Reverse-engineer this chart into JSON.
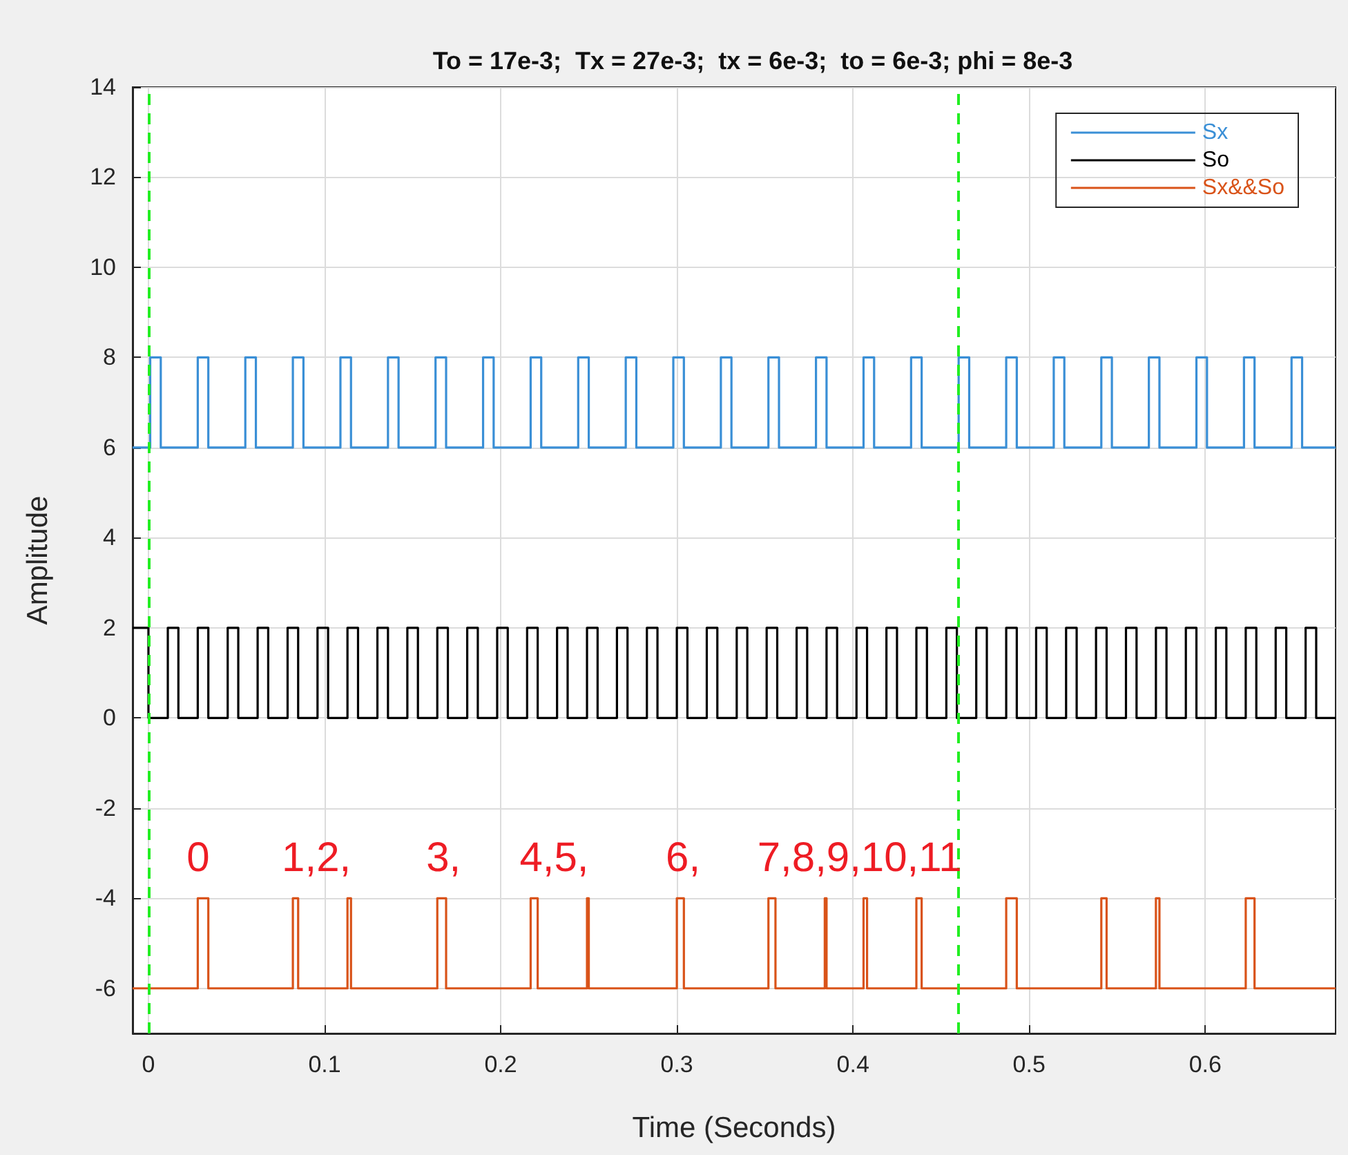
{
  "chart_data": {
    "type": "step",
    "title": "To = 17e-3;  Tx = 27e-3;  tx = 6e-3;  to = 6e-3; phi = 8e-3",
    "xlabel": "Time (Seconds)",
    "ylabel": "Amplitude",
    "xlim": [
      -0.009,
      0.674
    ],
    "xticks": [
      0,
      0.1,
      0.2,
      0.3,
      0.4,
      0.5,
      0.6
    ],
    "ylim": [
      -7,
      14
    ],
    "yticks": [
      -6,
      -4,
      -2,
      0,
      2,
      4,
      6,
      8,
      10,
      12,
      14
    ],
    "grid": true,
    "legend": "top right",
    "series": [
      {
        "name": "Sx",
        "color": "#3a8fd6",
        "x": [
          -0.009,
          0.001,
          0.007,
          0.028,
          0.034,
          0.055,
          0.061,
          0.082,
          0.088,
          0.109,
          0.115,
          0.136,
          0.142,
          0.163,
          0.169,
          0.19,
          0.196,
          0.217,
          0.223,
          0.244,
          0.25,
          0.271,
          0.277,
          0.298,
          0.304,
          0.325,
          0.331,
          0.352,
          0.358,
          0.379,
          0.385,
          0.406,
          0.412,
          0.433,
          0.439,
          0.46,
          0.466,
          0.487,
          0.493,
          0.514,
          0.52,
          0.541,
          0.547,
          0.568,
          0.574,
          0.595,
          0.601,
          0.622,
          0.628,
          0.649,
          0.655,
          0.674
        ],
        "values": [
          6,
          8,
          6,
          8,
          6,
          8,
          6,
          8,
          6,
          8,
          6,
          8,
          6,
          8,
          6,
          8,
          6,
          8,
          6,
          8,
          6,
          8,
          6,
          8,
          6,
          8,
          6,
          8,
          6,
          8,
          6,
          8,
          6,
          8,
          6,
          8,
          6,
          8,
          6,
          8,
          6,
          8,
          6,
          8,
          6,
          8,
          6,
          8,
          6,
          8,
          6,
          6
        ]
      },
      {
        "name": "So",
        "color": "#000000",
        "x": [
          -0.009,
          0.0,
          0.011,
          0.017,
          0.028,
          0.034,
          0.045,
          0.051,
          0.062,
          0.068,
          0.079,
          0.085,
          0.096,
          0.102,
          0.113,
          0.119,
          0.13,
          0.136,
          0.147,
          0.153,
          0.164,
          0.17,
          0.181,
          0.187,
          0.198,
          0.204,
          0.215,
          0.221,
          0.232,
          0.238,
          0.249,
          0.255,
          0.266,
          0.272,
          0.283,
          0.289,
          0.3,
          0.306,
          0.317,
          0.323,
          0.334,
          0.34,
          0.351,
          0.357,
          0.368,
          0.374,
          0.385,
          0.391,
          0.402,
          0.408,
          0.419,
          0.425,
          0.436,
          0.442,
          0.453,
          0.459,
          0.47,
          0.476,
          0.487,
          0.493,
          0.504,
          0.51,
          0.521,
          0.527,
          0.538,
          0.544,
          0.555,
          0.561,
          0.572,
          0.578,
          0.589,
          0.595,
          0.606,
          0.612,
          0.623,
          0.629,
          0.64,
          0.646,
          0.657,
          0.663,
          0.674
        ],
        "values": [
          2,
          0,
          2,
          0,
          2,
          0,
          2,
          0,
          2,
          0,
          2,
          0,
          2,
          0,
          2,
          0,
          2,
          0,
          2,
          0,
          2,
          0,
          2,
          0,
          2,
          0,
          2,
          0,
          2,
          0,
          2,
          0,
          2,
          0,
          2,
          0,
          2,
          0,
          2,
          0,
          2,
          0,
          2,
          0,
          2,
          0,
          2,
          0,
          2,
          0,
          2,
          0,
          2,
          0,
          2,
          0,
          2,
          0,
          2,
          0,
          2,
          0,
          2,
          0,
          2,
          0,
          2,
          0,
          2,
          0,
          2,
          0,
          2,
          0,
          2,
          0,
          2,
          0,
          2,
          0,
          0
        ]
      },
      {
        "name": "Sx&&So",
        "color": "#d95319",
        "x": [
          -0.009,
          0.028,
          0.034,
          0.082,
          0.085,
          0.113,
          0.115,
          0.164,
          0.169,
          0.217,
          0.221,
          0.249,
          0.25,
          0.3,
          0.304,
          0.352,
          0.356,
          0.384,
          0.385,
          0.406,
          0.408,
          0.436,
          0.439,
          0.487,
          0.493,
          0.541,
          0.544,
          0.572,
          0.574,
          0.623,
          0.628,
          0.674
        ],
        "values": [
          -6,
          -4,
          -6,
          -4,
          -6,
          -4,
          -6,
          -4,
          -6,
          -4,
          -6,
          -4,
          -6,
          -4,
          -6,
          -4,
          -6,
          -4,
          -6,
          -4,
          -6,
          -4,
          -6,
          -4,
          -6,
          -4,
          -6,
          -4,
          -6,
          -4,
          -6,
          -6
        ]
      }
    ],
    "ref_lines": [
      {
        "axis": "x",
        "value": 0.001,
        "color": "#22ee22",
        "line_style": "dashed"
      },
      {
        "axis": "x",
        "value": 0.46,
        "color": "#22ee22",
        "line_style": "dashed"
      }
    ],
    "annotations": [
      {
        "text": "0",
        "x": 0.028,
        "y": -4
      },
      {
        "text": "1,2,",
        "x": 0.082,
        "y": -4
      },
      {
        "text": "3,",
        "x": 0.164,
        "y": -4
      },
      {
        "text": "4,5,",
        "x": 0.217,
        "y": -4
      },
      {
        "text": "6,",
        "x": 0.3,
        "y": -4
      },
      {
        "text": "7,8,9,10,11",
        "x": 0.352,
        "y": -4
      }
    ]
  }
}
